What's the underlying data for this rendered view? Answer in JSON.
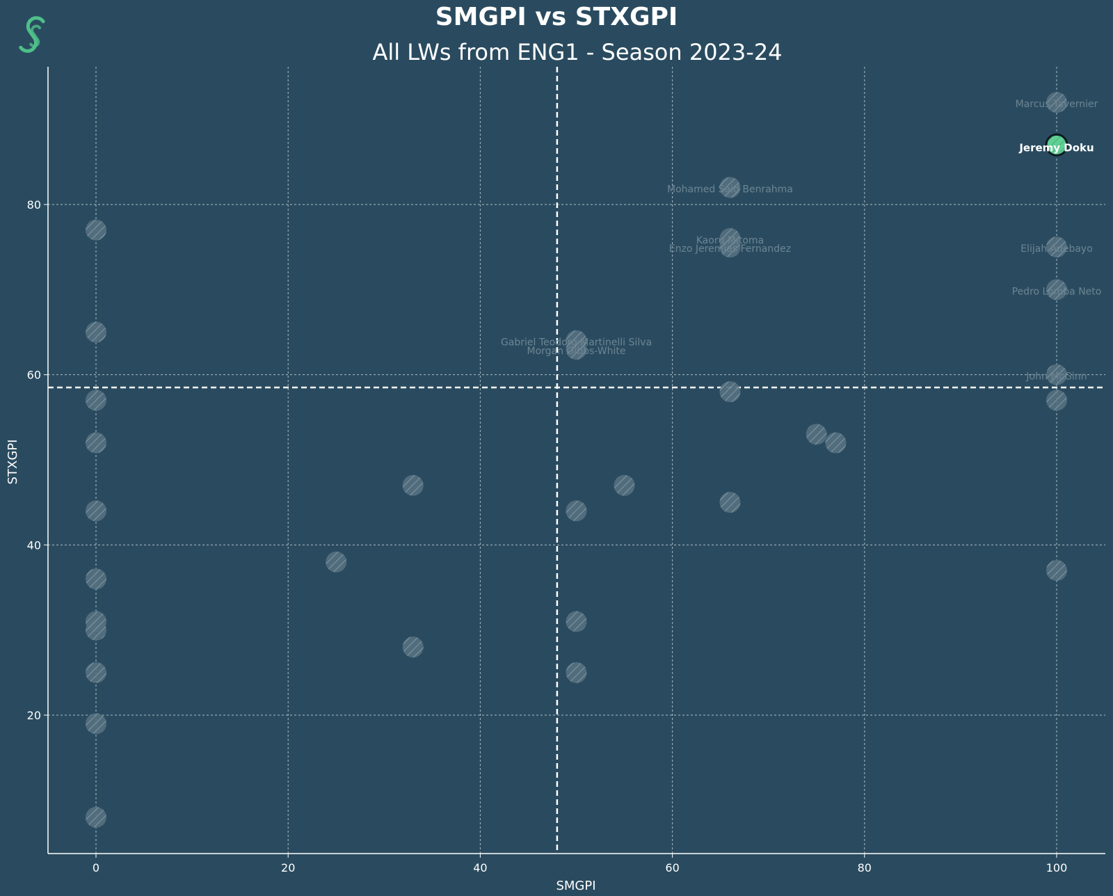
{
  "colors": {
    "background": "#2a4b5f",
    "text": "#ffffff",
    "grid": "#d8e2e8",
    "point_fill": "#55707f",
    "point_hatch": "#a9bac4",
    "highlight_fill": "#5fcf94",
    "highlight_edge": "#0d1a20",
    "dim_label": "#6c8593",
    "logo": "#4fbf8a"
  },
  "logo": {
    "icon": "swirl-logo-icon"
  },
  "chart_data": {
    "type": "scatter",
    "title": "SMGPI vs STXGPI",
    "subtitle": "All LWs from ENG1 - Season 2023-24",
    "xlabel": "SMGPI",
    "ylabel": "STXGPI",
    "xlim": [
      -5,
      105
    ],
    "ylim": [
      4,
      96
    ],
    "xticks": [
      "0",
      "20",
      "40",
      "60",
      "80",
      "100"
    ],
    "xtick_values": [
      0,
      20,
      40,
      60,
      80,
      100
    ],
    "yticks": [
      "20",
      "40",
      "60",
      "80"
    ],
    "ytick_values": [
      20,
      40,
      60,
      80
    ],
    "grid": true,
    "reference_lines": {
      "x": 48,
      "y": 58.5
    },
    "highlight": {
      "name": "Jeremy Doku",
      "x": 100,
      "y": 87
    },
    "points": [
      {
        "x": 100,
        "y": 92,
        "label": "Marcus Tavernier"
      },
      {
        "x": 66,
        "y": 82,
        "label": "Mohamed Said Benrahma"
      },
      {
        "x": 66,
        "y": 76,
        "label": "Kaoru Mitoma"
      },
      {
        "x": 66,
        "y": 75,
        "label": "Enzo Jeremias Fernandez"
      },
      {
        "x": 100,
        "y": 75,
        "label": "Elijah Adebayo"
      },
      {
        "x": 100,
        "y": 70,
        "label": "Pedro Lomba Neto"
      },
      {
        "x": 50,
        "y": 64,
        "label": "Gabriel Teodoro Martinelli Silva"
      },
      {
        "x": 50,
        "y": 63,
        "label": "Morgan Gibbs-White"
      },
      {
        "x": 100,
        "y": 60,
        "label": "John McGinn"
      },
      {
        "x": 0,
        "y": 77
      },
      {
        "x": 0,
        "y": 65
      },
      {
        "x": 0,
        "y": 57
      },
      {
        "x": 0,
        "y": 52
      },
      {
        "x": 0,
        "y": 44
      },
      {
        "x": 0,
        "y": 36
      },
      {
        "x": 0,
        "y": 31
      },
      {
        "x": 0,
        "y": 30
      },
      {
        "x": 0,
        "y": 25
      },
      {
        "x": 0,
        "y": 19
      },
      {
        "x": 0,
        "y": 8
      },
      {
        "x": 25,
        "y": 38
      },
      {
        "x": 33,
        "y": 47
      },
      {
        "x": 33,
        "y": 28
      },
      {
        "x": 50,
        "y": 44
      },
      {
        "x": 50,
        "y": 31
      },
      {
        "x": 50,
        "y": 25
      },
      {
        "x": 55,
        "y": 47
      },
      {
        "x": 66,
        "y": 58
      },
      {
        "x": 66,
        "y": 45
      },
      {
        "x": 75,
        "y": 53
      },
      {
        "x": 77,
        "y": 52
      },
      {
        "x": 100,
        "y": 57
      },
      {
        "x": 100,
        "y": 37
      }
    ]
  }
}
